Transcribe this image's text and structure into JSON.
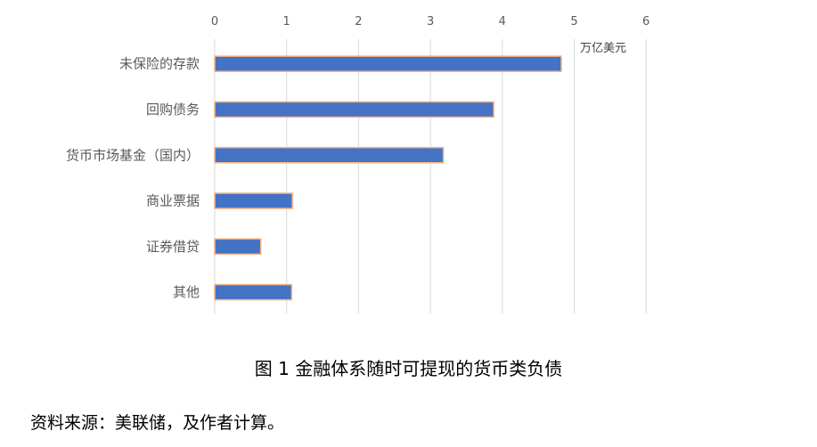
{
  "chart_data": {
    "type": "bar",
    "orientation": "horizontal",
    "categories": [
      "未保险的存款",
      "回购债务",
      "货币市场基金（国内）",
      "商业票据",
      "证券借贷",
      "其他"
    ],
    "values": [
      4.82,
      3.88,
      3.18,
      1.08,
      0.64,
      1.07
    ],
    "xlim": [
      0,
      6
    ],
    "xticks": [
      0,
      1,
      2,
      3,
      4,
      5,
      6
    ],
    "unit_label": "万亿美元",
    "grid": "vertical",
    "bar_color": "#4472C4",
    "bar_border_color": "#F4B183"
  },
  "caption": "图 1  金融体系随时可提现的货币类负债",
  "source": "资料来源：美联储，及作者计算。"
}
